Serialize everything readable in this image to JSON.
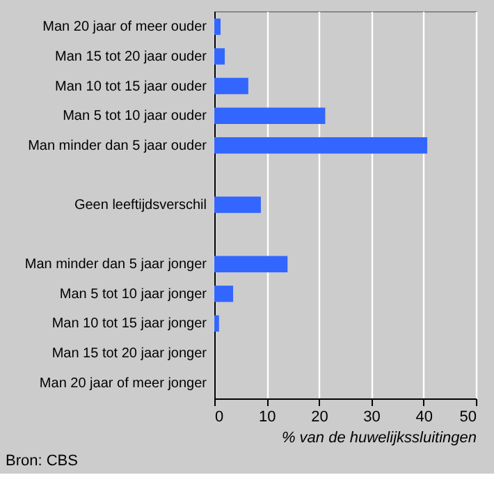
{
  "chart_data": {
    "type": "bar",
    "orientation": "horizontal",
    "categories": [
      "Man 20 jaar of meer ouder",
      "Man 15 tot 20 jaar ouder",
      "Man 10 tot 15 jaar ouder",
      "Man 5 tot 10 jaar ouder",
      "Man minder dan 5 jaar ouder",
      null,
      "Geen leeftijdsverschil",
      null,
      "Man minder dan 5 jaar jonger",
      "Man 5 tot 10 jaar jonger",
      "Man 10 tot 15 jaar jonger",
      "Man 15 tot 20 jaar jonger",
      "Man 20 jaar of meer jonger"
    ],
    "values": [
      1.2,
      2.0,
      6.5,
      21.2,
      40.7,
      null,
      8.9,
      null,
      14.0,
      3.6,
      0.9,
      0,
      0
    ],
    "color": "#3366ff",
    "xlabel": "% van de huwelijkssluitingen",
    "xlim": [
      0,
      50
    ],
    "xticks": [
      0,
      10,
      20,
      30,
      40,
      50
    ],
    "grid": "x",
    "annotations": [
      "Bron: CBS"
    ]
  }
}
